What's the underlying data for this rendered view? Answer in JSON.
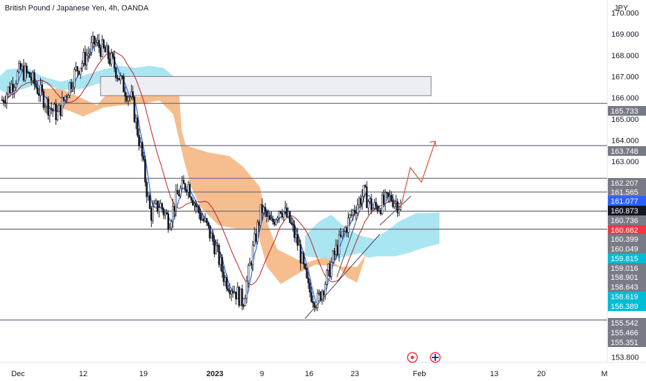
{
  "header": {
    "title": "British Pound / Japanese Yen, 4h, OANDA"
  },
  "chart_data": {
    "type": "candlestick",
    "title": "British Pound / Japanese Yen, 4h, OANDA",
    "ylabel": "JPY",
    "ylim": [
      153.65,
      170.6
    ],
    "y_ticks": [
      "170.000",
      "169.000",
      "168.000",
      "167.000",
      "166.000",
      "165.000",
      "164.000",
      "163.000",
      "153.800"
    ],
    "x_ticks": [
      "Dec",
      "12",
      "19",
      "2023",
      "9",
      "16",
      "23",
      "Feb",
      "13",
      "20",
      "M"
    ],
    "price_levels": [
      165.733,
      163.748,
      162.207,
      161.565,
      160.662,
      159.815,
      155.542
    ],
    "zone": {
      "price_top": 167.0,
      "price_bottom": 166.1,
      "start": "12",
      "end": "Feb"
    },
    "price_tags": [
      {
        "value": "165.733",
        "color": "#787b86"
      },
      {
        "value": "163.748",
        "color": "#787b86"
      },
      {
        "value": "162.207",
        "color": "#787b86"
      },
      {
        "value": "161.565",
        "color": "#787b86"
      },
      {
        "value": "161.077",
        "color": "#2962ff"
      },
      {
        "value": "160.873",
        "color": "#131722"
      },
      {
        "value": "160.736",
        "color": "#787b86"
      },
      {
        "value": "160.662",
        "color": "#f23645"
      },
      {
        "value": "160.399",
        "color": "#787b86"
      },
      {
        "value": "160.049",
        "color": "#787b86"
      },
      {
        "value": "159.815",
        "color": "#00bcd4"
      },
      {
        "value": "159.016",
        "color": "#787b86"
      },
      {
        "value": "158.901",
        "color": "#787b86"
      },
      {
        "value": "158.643",
        "color": "#787b86"
      },
      {
        "value": "158.619",
        "color": "#00bcd4"
      },
      {
        "value": "156.389",
        "color": "#00bcd4"
      },
      {
        "value": "155.542",
        "color": "#787b86"
      },
      {
        "value": "155.466",
        "color": "#787b86"
      },
      {
        "value": "155.351",
        "color": "#787b86"
      }
    ],
    "close_series": [
      165.9,
      166.6,
      167.3,
      167.0,
      166.3,
      165.6,
      165.2,
      166.3,
      167.3,
      167.9,
      168.6,
      168.2,
      167.6,
      166.6,
      165.9,
      163.5,
      160.5,
      161.0,
      160.2,
      161.5,
      162.0,
      160.8,
      160.0,
      159.0,
      157.5,
      157.0,
      156.4,
      158.7,
      160.8,
      160.0,
      160.9,
      160.2,
      159.0,
      157.0,
      156.4,
      157.5,
      158.8,
      159.8,
      160.8,
      161.5,
      160.8,
      161.0,
      161.3,
      160.9
    ],
    "colors": {
      "up": "#26a69a",
      "down": "#ef5350",
      "candle": "#131722",
      "ma_fast": "#2962ff",
      "ma_slow": "#b71c1c",
      "cloud_bull": "#9be0f0",
      "cloud_bear": "#f5b27a",
      "arrow": "#e0634a"
    },
    "icons": [
      "event-flag-icon",
      "uk-flag-icon"
    ]
  }
}
